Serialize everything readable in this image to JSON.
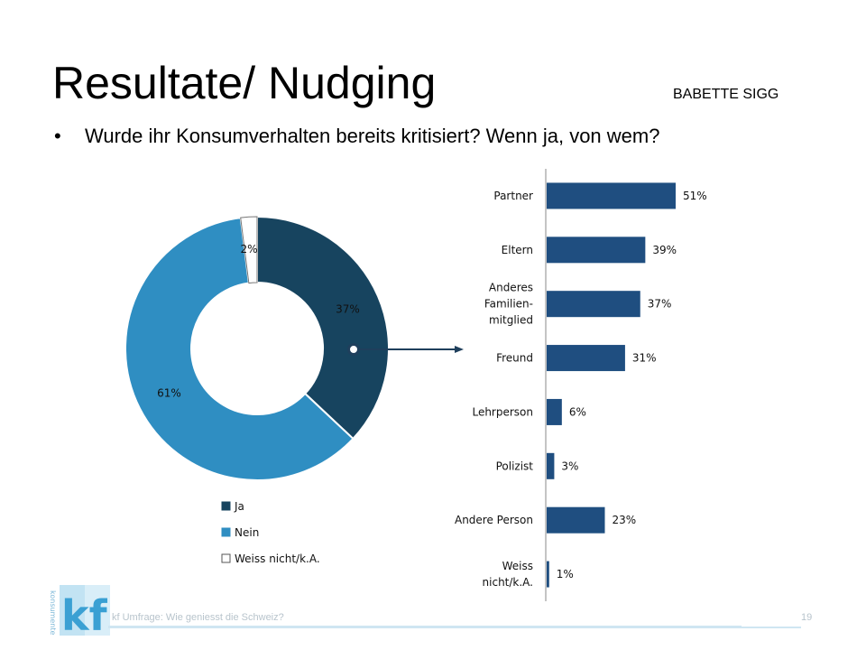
{
  "slide": {
    "title": "Resultate/ Nudging",
    "author": "BABETTE SIGG",
    "bullet": "Wurde ihr Konsumverhalten bereits kritisiert? Wenn ja, von wem?",
    "footer_source": "kf Umfrage: Wie geniesst die Schweiz?",
    "page_number": "19",
    "logo_text": "kf",
    "logo_side_text": "konsumenten forum"
  },
  "chart_data": [
    {
      "type": "pie",
      "style": "donut",
      "categories": [
        "Ja",
        "Nein",
        "Weiss nicht/k.A."
      ],
      "values": [
        37,
        61,
        2
      ],
      "labels": [
        "37%",
        "61%",
        "2%"
      ],
      "colors": [
        "#17445f",
        "#2f8ec2",
        "#ffffff"
      ],
      "legend": "bottom"
    },
    {
      "type": "bar",
      "orientation": "horizontal",
      "categories": [
        "Partner",
        "Eltern",
        "Anderes Familien-mitglied",
        "Freund",
        "Lehrperson",
        "Polizist",
        "Andere Person",
        "Weiss nicht/k.A."
      ],
      "category_lines": [
        [
          "Partner"
        ],
        [
          "Eltern"
        ],
        [
          "Anderes",
          "Familien-",
          "mitglied"
        ],
        [
          "Freund"
        ],
        [
          "Lehrperson"
        ],
        [
          "Polizist"
        ],
        [
          "Andere Person"
        ],
        [
          "Weiss",
          "nicht/k.A."
        ]
      ],
      "values": [
        51,
        39,
        37,
        31,
        6,
        3,
        23,
        1
      ],
      "labels": [
        "51%",
        "39%",
        "37%",
        "31%",
        "6%",
        "3%",
        "23%",
        "1%"
      ],
      "color": "#1f4e80"
    }
  ]
}
